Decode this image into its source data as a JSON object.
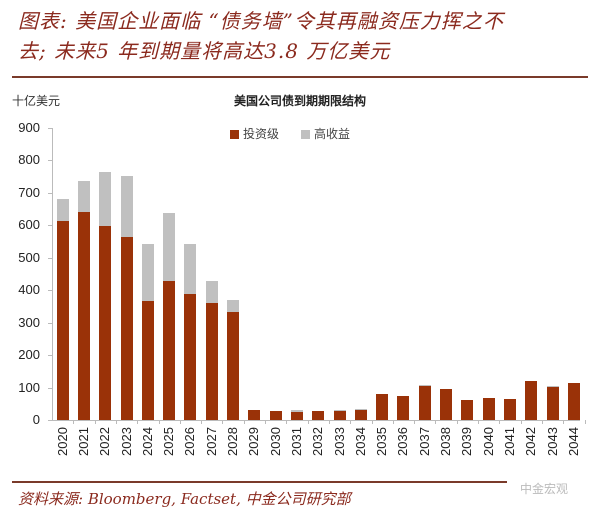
{
  "header": {
    "title_line1": "图表: 美国企业面临 “债务墙”令其再融资压力挥之不",
    "title_line2": "去; 未来5 年到期量将高达3.8 万亿美元"
  },
  "footer": {
    "source": "资料来源: Bloomberg, Factset, 中金公司研究部",
    "watermark": "中金宏观"
  },
  "colors": {
    "investment_grade": "#9a3208",
    "high_yield": "#c0c0c0",
    "title": "#8b2a1e"
  },
  "chart_data": {
    "type": "bar",
    "stacked": true,
    "title": "美国公司债到期期限结构",
    "ylabel": "十亿美元",
    "xlabel": "",
    "ylim": [
      0,
      900
    ],
    "yticks": [
      0,
      100,
      200,
      300,
      400,
      500,
      600,
      700,
      800,
      900
    ],
    "legend_position": "top",
    "grid": false,
    "categories": [
      "2020",
      "2021",
      "2022",
      "2023",
      "2024",
      "2025",
      "2026",
      "2027",
      "2028",
      "2029",
      "2030",
      "2031",
      "2032",
      "2033",
      "2034",
      "2035",
      "2036",
      "2037",
      "2038",
      "2039",
      "2040",
      "2041",
      "2042",
      "2043",
      "2044"
    ],
    "series": [
      {
        "name": "投资级",
        "values": [
          612,
          642,
          598,
          563,
          368,
          427,
          388,
          360,
          333,
          32,
          29,
          24,
          27,
          27,
          31,
          81,
          73,
          106,
          96,
          62,
          68,
          65,
          119,
          104,
          115
        ]
      },
      {
        "name": "高收益",
        "values": [
          70,
          95,
          165,
          190,
          175,
          211,
          155,
          67,
          37,
          0,
          0,
          6,
          0,
          3,
          3,
          0,
          0,
          2,
          0,
          0,
          0,
          0,
          0,
          2,
          0
        ]
      }
    ]
  }
}
